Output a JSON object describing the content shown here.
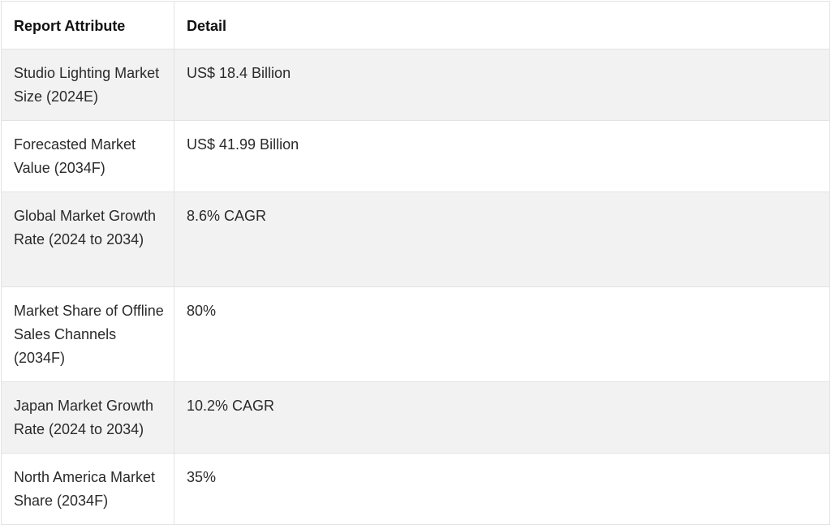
{
  "table": {
    "headers": [
      "Report Attribute",
      "Detail"
    ],
    "rows": [
      {
        "attribute": "Studio Lighting Market Size (2024E)",
        "detail": "US$ 18.4 Billion"
      },
      {
        "attribute": "Forecasted Market Value (2034F)",
        "detail": "US$ 41.99 Billion"
      },
      {
        "attribute": "Global Market Growth Rate (2024 to 2034)",
        "detail": "8.6% CAGR"
      },
      {
        "attribute": "Market Share of Offline Sales Channels (2034F)",
        "detail": "80%"
      },
      {
        "attribute": "Japan Market Growth Rate (2024 to 2034)",
        "detail": "10.2% CAGR"
      },
      {
        "attribute": "North America Market Share (2034F)",
        "detail": "35%"
      }
    ]
  }
}
